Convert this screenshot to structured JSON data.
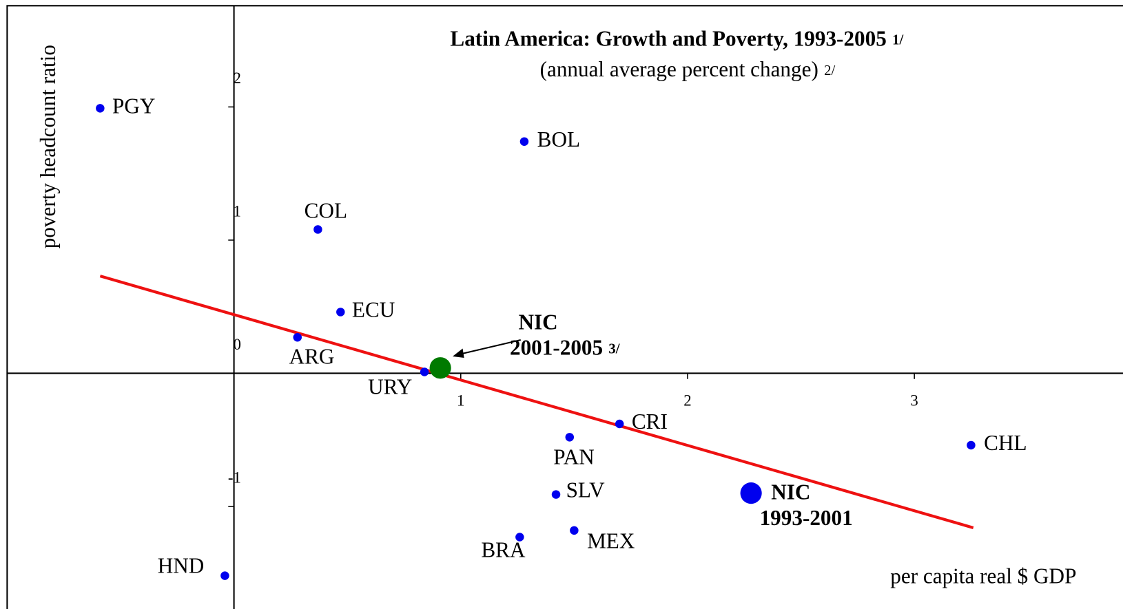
{
  "chart_data": {
    "type": "scatter",
    "title": "Latin America: Growth and Poverty, 1993-2005",
    "title_note": "1/",
    "subtitle": "(annual average percent change)",
    "subtitle_note": "2/",
    "x_label": "per capita real $ GDP",
    "y_label": "poverty headcount ratio",
    "xlim": [
      -1.0,
      3.92
    ],
    "ylim": [
      -1.77,
      2.76
    ],
    "xticks": [
      1,
      2,
      3
    ],
    "yticks": [
      -1,
      0,
      1,
      2
    ],
    "series": [
      {
        "color": "#0000ee",
        "size": "small",
        "labels": [
          "PGY",
          "BOL",
          "COL",
          "ECU",
          "ARG",
          "URY",
          "CRI",
          "PAN",
          "CHL",
          "SLV",
          "BRA",
          "MEX",
          "HND"
        ],
        "x": [
          -0.59,
          1.28,
          0.37,
          0.47,
          0.28,
          0.84,
          1.7,
          1.48,
          3.25,
          1.42,
          1.26,
          1.5,
          -0.04
        ],
        "y": [
          1.99,
          1.74,
          1.08,
          0.46,
          0.27,
          0.01,
          -0.38,
          -0.48,
          -0.54,
          -0.91,
          -1.23,
          -1.18,
          -1.52
        ]
      },
      {
        "color": "#0000ee",
        "size": "large",
        "bold": true,
        "labels": [
          [
            "NIC",
            "1993-2001"
          ]
        ],
        "x": [
          2.28
        ],
        "y": [
          -0.9
        ]
      },
      {
        "color": "#007a00",
        "size": "large",
        "bold": true,
        "labels": [
          [
            "NIC",
            "2001-2005"
          ]
        ],
        "label_note": "3/",
        "x": [
          0.91
        ],
        "y": [
          0.04
        ]
      }
    ],
    "trend_line": {
      "color": "#ee1111",
      "x": [
        -0.59,
        3.26
      ],
      "y": [
        0.73,
        -1.16
      ]
    }
  }
}
